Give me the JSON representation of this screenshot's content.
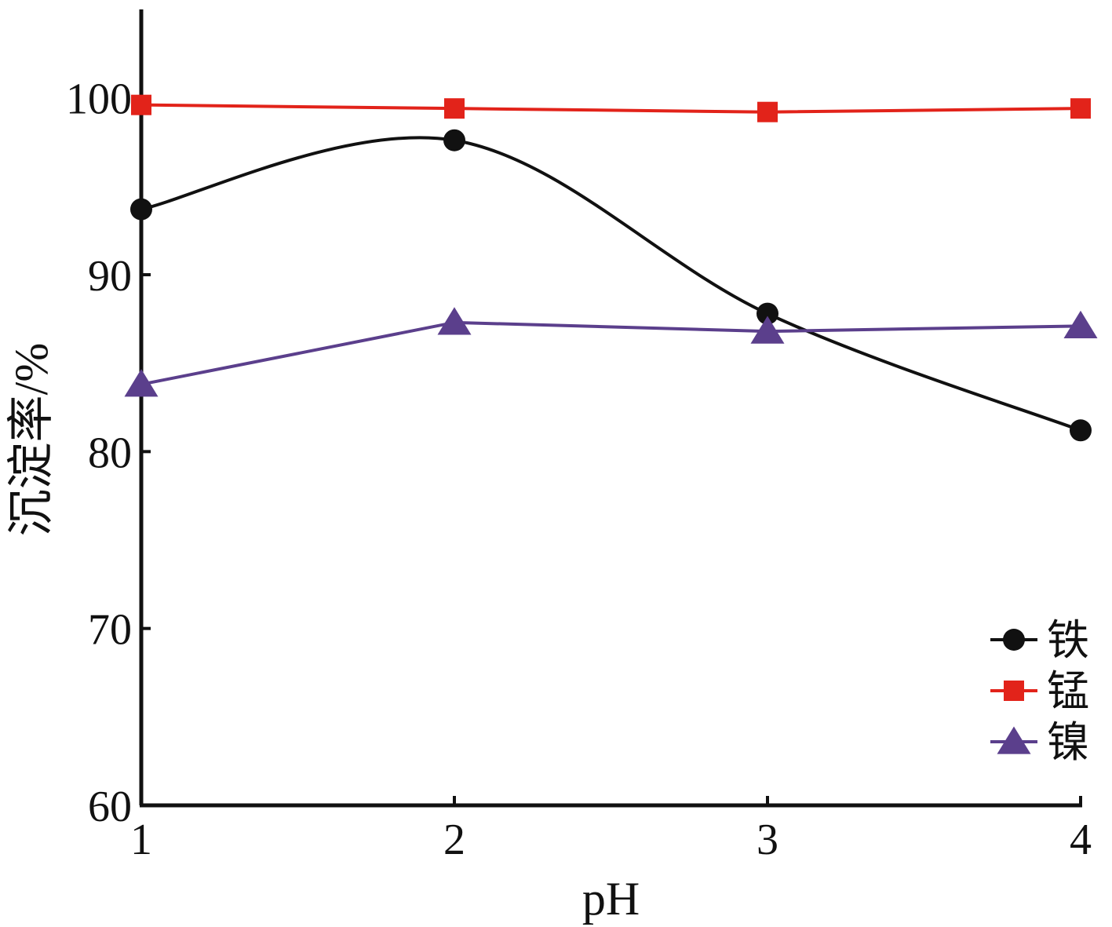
{
  "chart_data": {
    "type": "line",
    "xlabel": "pH",
    "ylabel": "沉淀率/%",
    "xlim": [
      1,
      4
    ],
    "ylim": [
      60,
      105
    ],
    "x_ticks": [
      1,
      2,
      3,
      4
    ],
    "y_ticks": [
      60,
      70,
      80,
      90,
      100
    ],
    "grid": false,
    "legend_position": "bottom-right",
    "series": [
      {
        "name": "铁",
        "color": "#111111",
        "marker": "circle",
        "smooth": true,
        "x": [
          1,
          2,
          3,
          4
        ],
        "y": [
          93.7,
          97.6,
          87.8,
          81.2
        ]
      },
      {
        "name": "锰",
        "color": "#e2231a",
        "marker": "square",
        "smooth": false,
        "x": [
          1,
          2,
          3,
          4
        ],
        "y": [
          99.6,
          99.4,
          99.2,
          99.4
        ]
      },
      {
        "name": "镍",
        "color": "#5b3f8c",
        "marker": "triangle",
        "smooth": false,
        "x": [
          1,
          2,
          3,
          4
        ],
        "y": [
          83.8,
          87.3,
          86.8,
          87.1
        ]
      }
    ]
  }
}
